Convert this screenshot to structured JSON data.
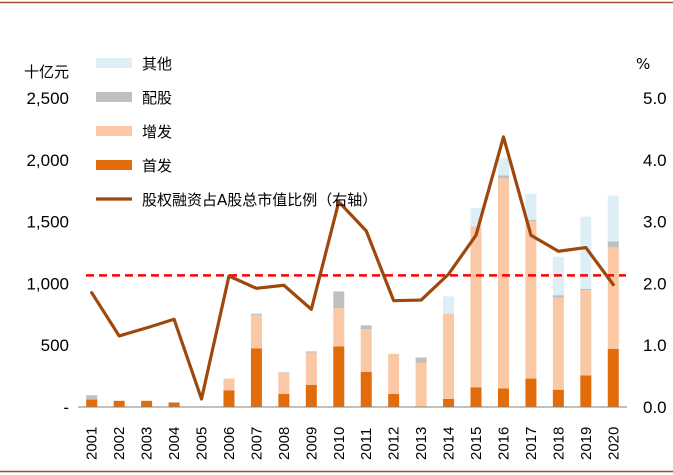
{
  "chart_data": {
    "type": "bar",
    "stacked": true,
    "categories": [
      "2001",
      "2002",
      "2003",
      "2004",
      "2005",
      "2006",
      "2007",
      "2008",
      "2009",
      "2010",
      "2011",
      "2012",
      "2013",
      "2014",
      "2015",
      "2016",
      "2017",
      "2018",
      "2019",
      "2020"
    ],
    "left_axis": {
      "unit": "十亿元",
      "range": [
        0,
        2500
      ],
      "ticks": [
        0,
        500,
        1000,
        1500,
        2000,
        2500
      ],
      "tick_labels": [
        "-",
        "500",
        "1,000",
        "1,500",
        "2,000",
        "2,500"
      ]
    },
    "right_axis": {
      "unit": "%",
      "range": [
        0.0,
        5.0
      ],
      "ticks": [
        0.0,
        1.0,
        2.0,
        3.0,
        4.0,
        5.0
      ],
      "tick_labels": [
        "0.0",
        "1.0",
        "2.0",
        "3.0",
        "4.0",
        "5.0"
      ]
    },
    "series": [
      {
        "name": "首发",
        "color": "#E36C0A",
        "axis": "left",
        "values": [
          60,
          50,
          50,
          35,
          0,
          135,
          475,
          105,
          180,
          490,
          285,
          105,
          0,
          65,
          160,
          150,
          230,
          140,
          255,
          470
        ]
      },
      {
        "name": "增发",
        "color": "#FAC8A4",
        "axis": "left",
        "values": [
          0,
          0,
          0,
          0,
          0,
          95,
          270,
          170,
          260,
          310,
          345,
          325,
          360,
          690,
          1300,
          1700,
          1275,
          745,
          690,
          825
        ]
      },
      {
        "name": "配股",
        "color": "#BFBFBF",
        "axis": "left",
        "values": [
          35,
          0,
          0,
          5,
          0,
          0,
          10,
          5,
          10,
          135,
          30,
          0,
          40,
          0,
          0,
          25,
          10,
          20,
          10,
          45
        ]
      },
      {
        "name": "其他",
        "color": "#DDEEF6",
        "axis": "left",
        "values": [
          0,
          0,
          0,
          0,
          0,
          0,
          0,
          0,
          0,
          0,
          0,
          0,
          0,
          140,
          150,
          140,
          210,
          310,
          585,
          370
        ]
      },
      {
        "name": "股权融资占A股总市值比例（右轴）",
        "type": "line",
        "color": "#9E480E",
        "axis": "right",
        "values": [
          1.85,
          1.15,
          1.28,
          1.42,
          0.13,
          2.12,
          1.92,
          1.97,
          1.58,
          3.32,
          2.85,
          1.72,
          1.73,
          2.15,
          2.78,
          4.37,
          2.78,
          2.52,
          2.58,
          1.98
        ]
      }
    ],
    "reference_line": {
      "axis": "right",
      "value": 2.13,
      "style": "dashed",
      "color": "#FF0000"
    },
    "legend": {
      "placement": "top-left"
    },
    "grid": false
  }
}
